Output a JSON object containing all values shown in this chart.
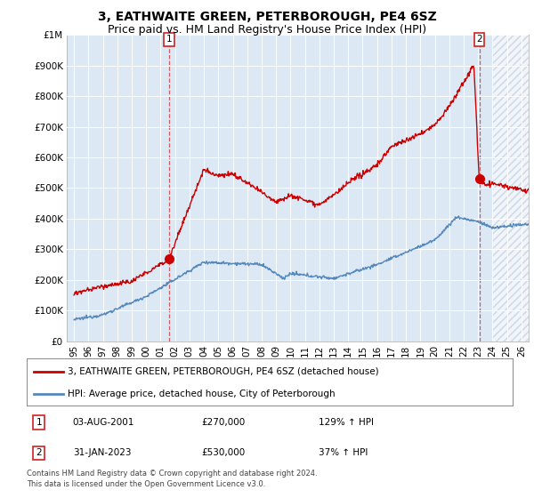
{
  "title": "3, EATHWAITE GREEN, PETERBOROUGH, PE4 6SZ",
  "subtitle": "Price paid vs. HM Land Registry's House Price Index (HPI)",
  "ylim": [
    0,
    1000000
  ],
  "yticks": [
    0,
    100000,
    200000,
    300000,
    400000,
    500000,
    600000,
    700000,
    800000,
    900000,
    1000000
  ],
  "ytick_labels": [
    "£0",
    "£100K",
    "£200K",
    "£300K",
    "£400K",
    "£500K",
    "£600K",
    "£700K",
    "£800K",
    "£900K",
    "£1M"
  ],
  "xlim_start": 1994.5,
  "xlim_end": 2026.5,
  "xtick_years": [
    1995,
    1996,
    1997,
    1998,
    1999,
    2000,
    2001,
    2002,
    2003,
    2004,
    2005,
    2006,
    2007,
    2008,
    2009,
    2010,
    2011,
    2012,
    2013,
    2014,
    2015,
    2016,
    2017,
    2018,
    2019,
    2020,
    2021,
    2022,
    2023,
    2024,
    2025,
    2026
  ],
  "legend_line1": "3, EATHWAITE GREEN, PETERBOROUGH, PE4 6SZ (detached house)",
  "legend_line2": "HPI: Average price, detached house, City of Peterborough",
  "line1_color": "#cc0000",
  "line2_color": "#5588bb",
  "sale1_year": 2001.58,
  "sale1_price": 270000,
  "sale2_year": 2023.08,
  "sale2_price": 530000,
  "marker_color": "#cc0000",
  "footer1": "Contains HM Land Registry data © Crown copyright and database right 2024.",
  "footer2": "This data is licensed under the Open Government Licence v3.0.",
  "background_color": "#ffffff",
  "plot_bg_color": "#dde8f5",
  "grid_color": "#ffffff",
  "hatch_color": "#bbccdd",
  "title_fontsize": 10,
  "subtitle_fontsize": 9
}
